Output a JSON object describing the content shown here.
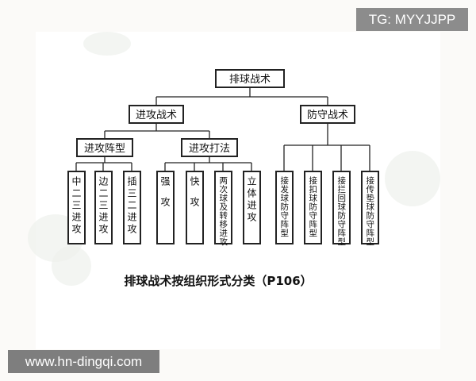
{
  "diagram": {
    "root": "排球战术",
    "branches": [
      {
        "label": "进攻战术",
        "children": [
          {
            "label": "进攻阵型",
            "children": [
              "中二三进攻",
              "边二三进攻",
              "插三二进攻"
            ]
          },
          {
            "label": "进攻打法",
            "children": [
              "强攻",
              "快攻",
              "两次球及转移进攻",
              "立体进攻"
            ]
          }
        ]
      },
      {
        "label": "防守战术",
        "children": [
          "接发球防守阵型",
          "接扣球防守阵型",
          "接拦回球防守阵型",
          "接传垫球防守阵型"
        ]
      }
    ],
    "caption": "排球战术按组织形式分类（P106）"
  },
  "watermarks": {
    "top": "TG: MYYJJPP",
    "bottom": "www.hn-dingqi.com"
  },
  "colors": {
    "line": "#222222",
    "watermark_bg": "#8c8c8c"
  }
}
